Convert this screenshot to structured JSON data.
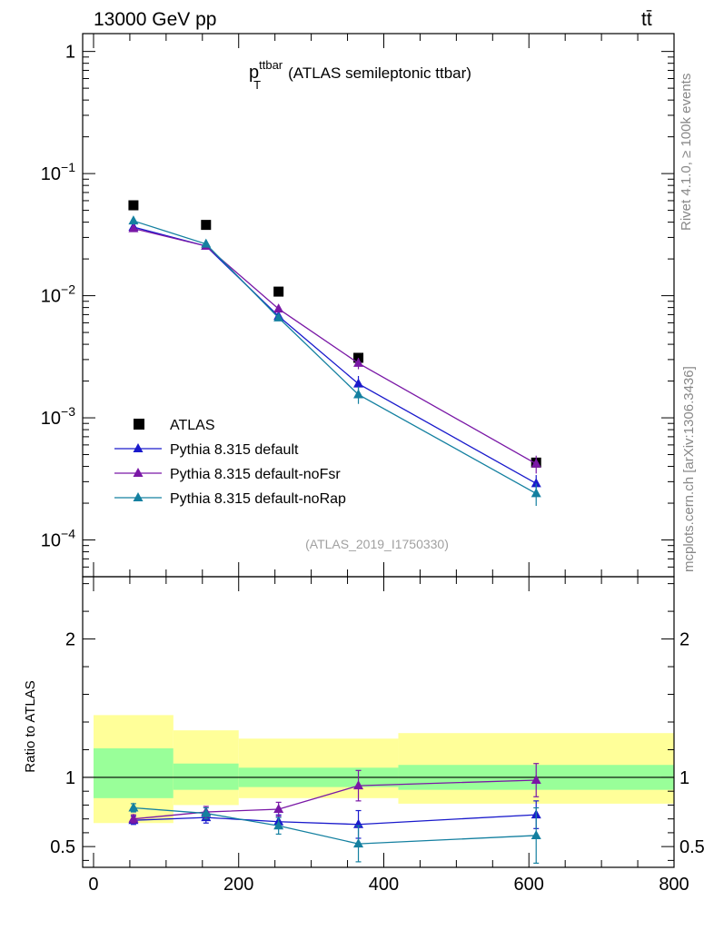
{
  "header": {
    "left": "13000 GeV pp",
    "right": "tt̄"
  },
  "side_text": {
    "top": "Rivet 4.1.0, ≥ 100k events",
    "bottom": "mcplots.cern.ch [arXiv:1306.3436]"
  },
  "chart_data": [
    {
      "type": "scatter",
      "panel": "main",
      "title_main": "p",
      "title_sup": "ttbar",
      "title_sub": "T",
      "title_rest": "(ATLAS semileptonic ttbar)",
      "watermark": "(ATLAS_2019_I1750330)",
      "yscale": "log",
      "ylim": [
        5e-05,
        1.4
      ],
      "xlim": [
        -15,
        800
      ],
      "y_ticks": [
        {
          "value": 1,
          "base": "1",
          "exp": ""
        },
        {
          "value": 0.1,
          "base": "10",
          "exp": "−1"
        },
        {
          "value": 0.01,
          "base": "10",
          "exp": "−2"
        },
        {
          "value": 0.001,
          "base": "10",
          "exp": "−3"
        },
        {
          "value": 0.0001,
          "base": "10",
          "exp": "−4"
        }
      ],
      "legend_position": "bottom-left",
      "series": [
        {
          "name": "ATLAS",
          "marker": "square",
          "color": "#000000",
          "line": false,
          "x": [
            55,
            155,
            255,
            365,
            610
          ],
          "y": [
            0.055,
            0.038,
            0.0108,
            0.0031,
            0.00043
          ],
          "err": [
            0,
            0,
            0,
            0,
            0
          ]
        },
        {
          "name": "Pythia 8.315 default",
          "marker": "triangle",
          "color": "#1a1acc",
          "line": true,
          "x": [
            55,
            155,
            255,
            365,
            610
          ],
          "y": [
            0.0365,
            0.0255,
            0.0068,
            0.0019,
            0.00029
          ],
          "err": [
            0.0012,
            0.0008,
            0.0003,
            0.0003,
            5e-05
          ]
        },
        {
          "name": "Pythia 8.315 default-noFsr",
          "marker": "triangle",
          "color": "#7a18a6",
          "line": true,
          "x": [
            55,
            155,
            255,
            365,
            610
          ],
          "y": [
            0.0355,
            0.0255,
            0.0078,
            0.0028,
            0.00042
          ],
          "err": [
            0.0012,
            0.0008,
            0.0003,
            0.0003,
            7e-05
          ]
        },
        {
          "name": "Pythia 8.315 default-noRap",
          "marker": "triangle",
          "color": "#1480a0",
          "line": true,
          "x": [
            55,
            155,
            255,
            365,
            610
          ],
          "y": [
            0.041,
            0.0265,
            0.0066,
            0.00155,
            0.00024
          ],
          "err": [
            0.0013,
            0.0009,
            0.0003,
            0.00025,
            5e-05
          ]
        }
      ]
    },
    {
      "type": "scatter",
      "panel": "ratio",
      "ylabel": "Ratio to ATLAS",
      "ylim": [
        0.35,
        2.45
      ],
      "xlim": [
        -15,
        800
      ],
      "x_ticks": [
        0,
        200,
        400,
        600,
        800
      ],
      "x_tick_labels": [
        "0",
        "200",
        "400",
        "600",
        "800"
      ],
      "y_ticks": [
        0.5,
        1,
        2
      ],
      "y_tick_labels": [
        "0.5",
        "1",
        "2"
      ],
      "bands": [
        {
          "x0": 0,
          "x1": 110,
          "inner": [
            0.85,
            1.21
          ],
          "outer": [
            0.67,
            1.45
          ]
        },
        {
          "x0": 110,
          "x1": 200,
          "inner": [
            0.91,
            1.1
          ],
          "outer": [
            0.8,
            1.34
          ]
        },
        {
          "x0": 200,
          "x1": 420,
          "inner": [
            0.93,
            1.07
          ],
          "outer": [
            0.85,
            1.28
          ]
        },
        {
          "x0": 420,
          "x1": 800,
          "inner": [
            0.91,
            1.09
          ],
          "outer": [
            0.81,
            1.32
          ]
        }
      ],
      "series": [
        {
          "name": "Pythia 8.315 default",
          "color": "#1a1acc",
          "x": [
            55,
            155,
            255,
            365,
            610
          ],
          "y": [
            0.69,
            0.71,
            0.68,
            0.66,
            0.73
          ],
          "err": [
            0.03,
            0.04,
            0.05,
            0.1,
            0.1
          ]
        },
        {
          "name": "Pythia 8.315 default-noFsr",
          "color": "#7a18a6",
          "x": [
            55,
            155,
            255,
            365,
            610
          ],
          "y": [
            0.7,
            0.75,
            0.77,
            0.94,
            0.98
          ],
          "err": [
            0.03,
            0.04,
            0.05,
            0.11,
            0.12
          ]
        },
        {
          "name": "Pythia 8.315 default-noRap",
          "color": "#1480a0",
          "x": [
            55,
            155,
            255,
            365,
            610
          ],
          "y": [
            0.78,
            0.74,
            0.65,
            0.52,
            0.58
          ],
          "err": [
            0.03,
            0.04,
            0.06,
            0.13,
            0.2
          ]
        }
      ]
    }
  ]
}
